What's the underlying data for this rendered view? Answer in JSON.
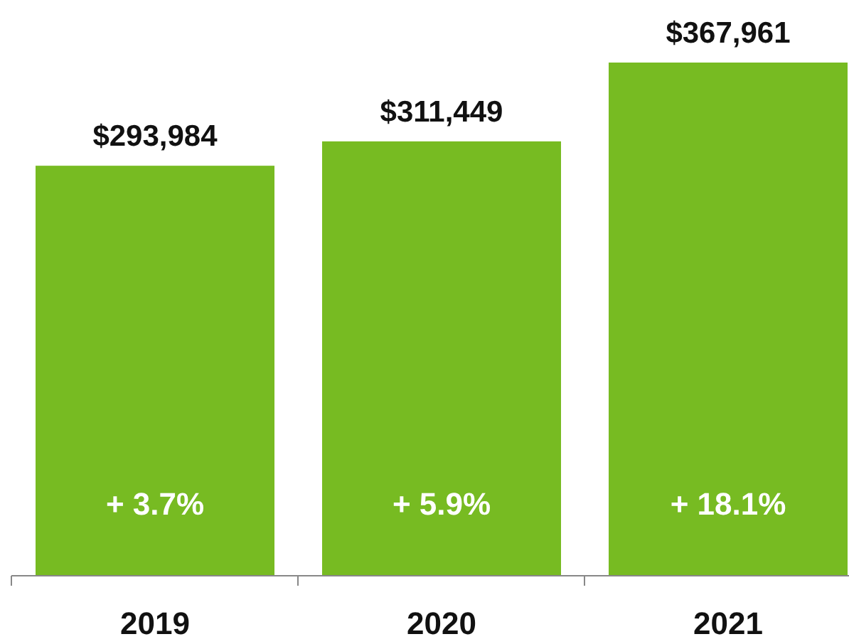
{
  "chart_data": {
    "type": "bar",
    "categories": [
      "2019",
      "2020",
      "2021"
    ],
    "values": [
      293984,
      311449,
      367961
    ],
    "color": "#77bb22",
    "data_labels": true,
    "value_labels": [
      "$293,984",
      "$311,449",
      "$367,961"
    ],
    "annotations": [
      "+ 3.7%",
      "+ 5.9%",
      "+ 18.1%"
    ]
  }
}
